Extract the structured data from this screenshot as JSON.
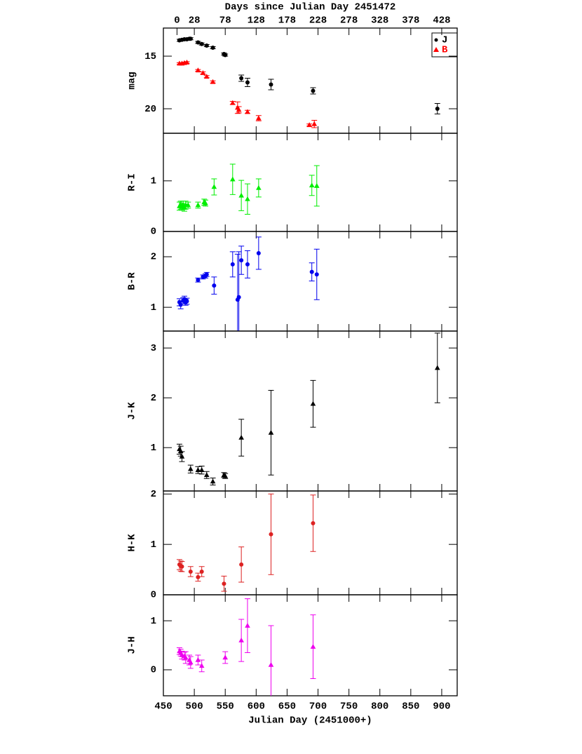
{
  "chart_data": [
    {
      "type": "scatter",
      "ylabel": "mag",
      "x2label": "Days since Julian Day 2451472",
      "x2lim": [
        -22,
        453
      ],
      "x2ticks": [
        0,
        28,
        78,
        128,
        178,
        228,
        278,
        328,
        378,
        428
      ],
      "ylim": [
        22.33,
        12.33
      ],
      "yticks": [
        15,
        20
      ],
      "legend": "upper right",
      "series": [
        {
          "name": "J",
          "color": "#000000",
          "marker": "circle",
          "x": [
            476,
            480,
            484,
            488,
            492,
            494,
            506,
            512,
            520,
            530,
            548,
            550,
            576,
            586,
            624,
            692,
            893
          ],
          "values": [
            13.5,
            13.45,
            13.4,
            13.4,
            13.35,
            13.35,
            13.7,
            13.85,
            14.0,
            14.2,
            14.8,
            14.9,
            17.1,
            17.5,
            17.7,
            18.3,
            20.0
          ],
          "errors": [
            0.1,
            0.1,
            0.1,
            0.1,
            0.1,
            0.1,
            0.1,
            0.1,
            0.1,
            0.1,
            0.1,
            0.1,
            0.3,
            0.4,
            0.5,
            0.3,
            0.5
          ]
        },
        {
          "name": "B",
          "color": "#ff0000",
          "marker": "triangle",
          "x": [
            476,
            480,
            484,
            488,
            506,
            514,
            520,
            530,
            562,
            570,
            572,
            586,
            604,
            686,
            694
          ],
          "values": [
            15.7,
            15.7,
            15.65,
            15.6,
            16.35,
            16.6,
            16.95,
            17.45,
            19.45,
            19.9,
            20.1,
            20.3,
            20.9,
            21.55,
            21.45
          ],
          "errors": [
            0.08,
            0.08,
            0.08,
            0.08,
            0.08,
            0.1,
            0.1,
            0.1,
            0.15,
            0.55,
            0.3,
            0.15,
            0.25,
            0.1,
            0.35
          ]
        }
      ]
    },
    {
      "type": "scatter",
      "ylabel": "R-I",
      "ylim": [
        0,
        1.94
      ],
      "yticks": [
        0,
        1
      ],
      "series": [
        {
          "color": "#00ee00",
          "marker": "triangle",
          "x": [
            476,
            478,
            480,
            482,
            484,
            486,
            490,
            506,
            516,
            518,
            532,
            562,
            576,
            586,
            604,
            690,
            698
          ],
          "values": [
            0.5,
            0.52,
            0.49,
            0.52,
            0.47,
            0.52,
            0.52,
            0.52,
            0.58,
            0.56,
            0.88,
            1.03,
            0.71,
            0.64,
            0.86,
            0.91,
            0.9
          ],
          "errors": [
            0.08,
            0.08,
            0.07,
            0.08,
            0.07,
            0.08,
            0.06,
            0.06,
            0.06,
            0.06,
            0.16,
            0.3,
            0.3,
            0.3,
            0.18,
            0.2,
            0.4
          ]
        }
      ]
    },
    {
      "type": "scatter",
      "ylabel": "B-R",
      "ylim": [
        0.53,
        2.5
      ],
      "yticks": [
        1,
        2
      ],
      "series": [
        {
          "color": "#0000ee",
          "marker": "circle",
          "x": [
            476,
            478,
            482,
            484,
            486,
            488,
            506,
            514,
            518,
            520,
            532,
            562,
            570,
            572,
            576,
            586,
            604,
            690,
            698
          ],
          "values": [
            1.1,
            1.05,
            1.13,
            1.16,
            1.1,
            1.12,
            1.54,
            1.6,
            1.62,
            1.65,
            1.43,
            1.85,
            1.15,
            1.2,
            1.93,
            1.85,
            2.07,
            1.7,
            1.65
          ],
          "errors": [
            0.07,
            0.08,
            0.06,
            0.06,
            0.06,
            0.06,
            0.04,
            0.04,
            0.04,
            0.04,
            0.17,
            0.25,
            0.9,
            0.9,
            0.28,
            0.27,
            0.32,
            0.18,
            0.5
          ]
        }
      ]
    },
    {
      "type": "scatter",
      "ylabel": "J-K",
      "ylim": [
        0.13,
        3.34
      ],
      "yticks": [
        1,
        2,
        3
      ],
      "series": [
        {
          "color": "#000000",
          "marker": "triangle",
          "x": [
            476,
            478,
            480,
            494,
            506,
            512,
            520,
            530,
            548,
            550,
            576,
            624,
            692,
            893
          ],
          "values": [
            0.97,
            0.93,
            0.82,
            0.57,
            0.55,
            0.55,
            0.45,
            0.32,
            0.45,
            0.43,
            1.2,
            1.3,
            1.88,
            2.6
          ],
          "errors": [
            0.1,
            0.1,
            0.1,
            0.08,
            0.07,
            0.08,
            0.07,
            0.07,
            0.05,
            0.05,
            0.37,
            0.85,
            0.47,
            0.7
          ]
        }
      ]
    },
    {
      "type": "scatter",
      "ylabel": "H-K",
      "ylim": [
        0,
        2.06
      ],
      "yticks": [
        0,
        1,
        2
      ],
      "series": [
        {
          "color": "#dd2222",
          "marker": "circle",
          "x": [
            476,
            478,
            480,
            494,
            506,
            512,
            548,
            576,
            624,
            692
          ],
          "values": [
            0.6,
            0.57,
            0.56,
            0.46,
            0.35,
            0.46,
            0.22,
            0.6,
            1.2,
            1.42
          ],
          "errors": [
            0.1,
            0.1,
            0.1,
            0.1,
            0.08,
            0.1,
            0.15,
            0.35,
            0.8,
            0.56
          ]
        }
      ]
    },
    {
      "type": "scatter",
      "ylabel": "J-H",
      "ylim": [
        -0.53,
        1.53
      ],
      "yticks": [
        0,
        1
      ],
      "xlabel": "Julian Day (2451000+)",
      "xlim": [
        450,
        925
      ],
      "xticks": [
        450,
        500,
        550,
        600,
        650,
        700,
        750,
        800,
        850,
        900
      ],
      "series": [
        {
          "color": "#ee00ee",
          "marker": "triangle",
          "x": [
            476,
            478,
            480,
            484,
            486,
            492,
            494,
            506,
            512,
            550,
            576,
            586,
            624,
            692
          ],
          "values": [
            0.38,
            0.35,
            0.3,
            0.28,
            0.25,
            0.2,
            0.15,
            0.2,
            0.08,
            0.25,
            0.6,
            0.9,
            0.1,
            0.47
          ],
          "errors": [
            0.07,
            0.07,
            0.08,
            0.08,
            0.12,
            0.1,
            0.12,
            0.1,
            0.12,
            0.12,
            0.43,
            0.55,
            0.8,
            0.65
          ]
        }
      ]
    }
  ]
}
